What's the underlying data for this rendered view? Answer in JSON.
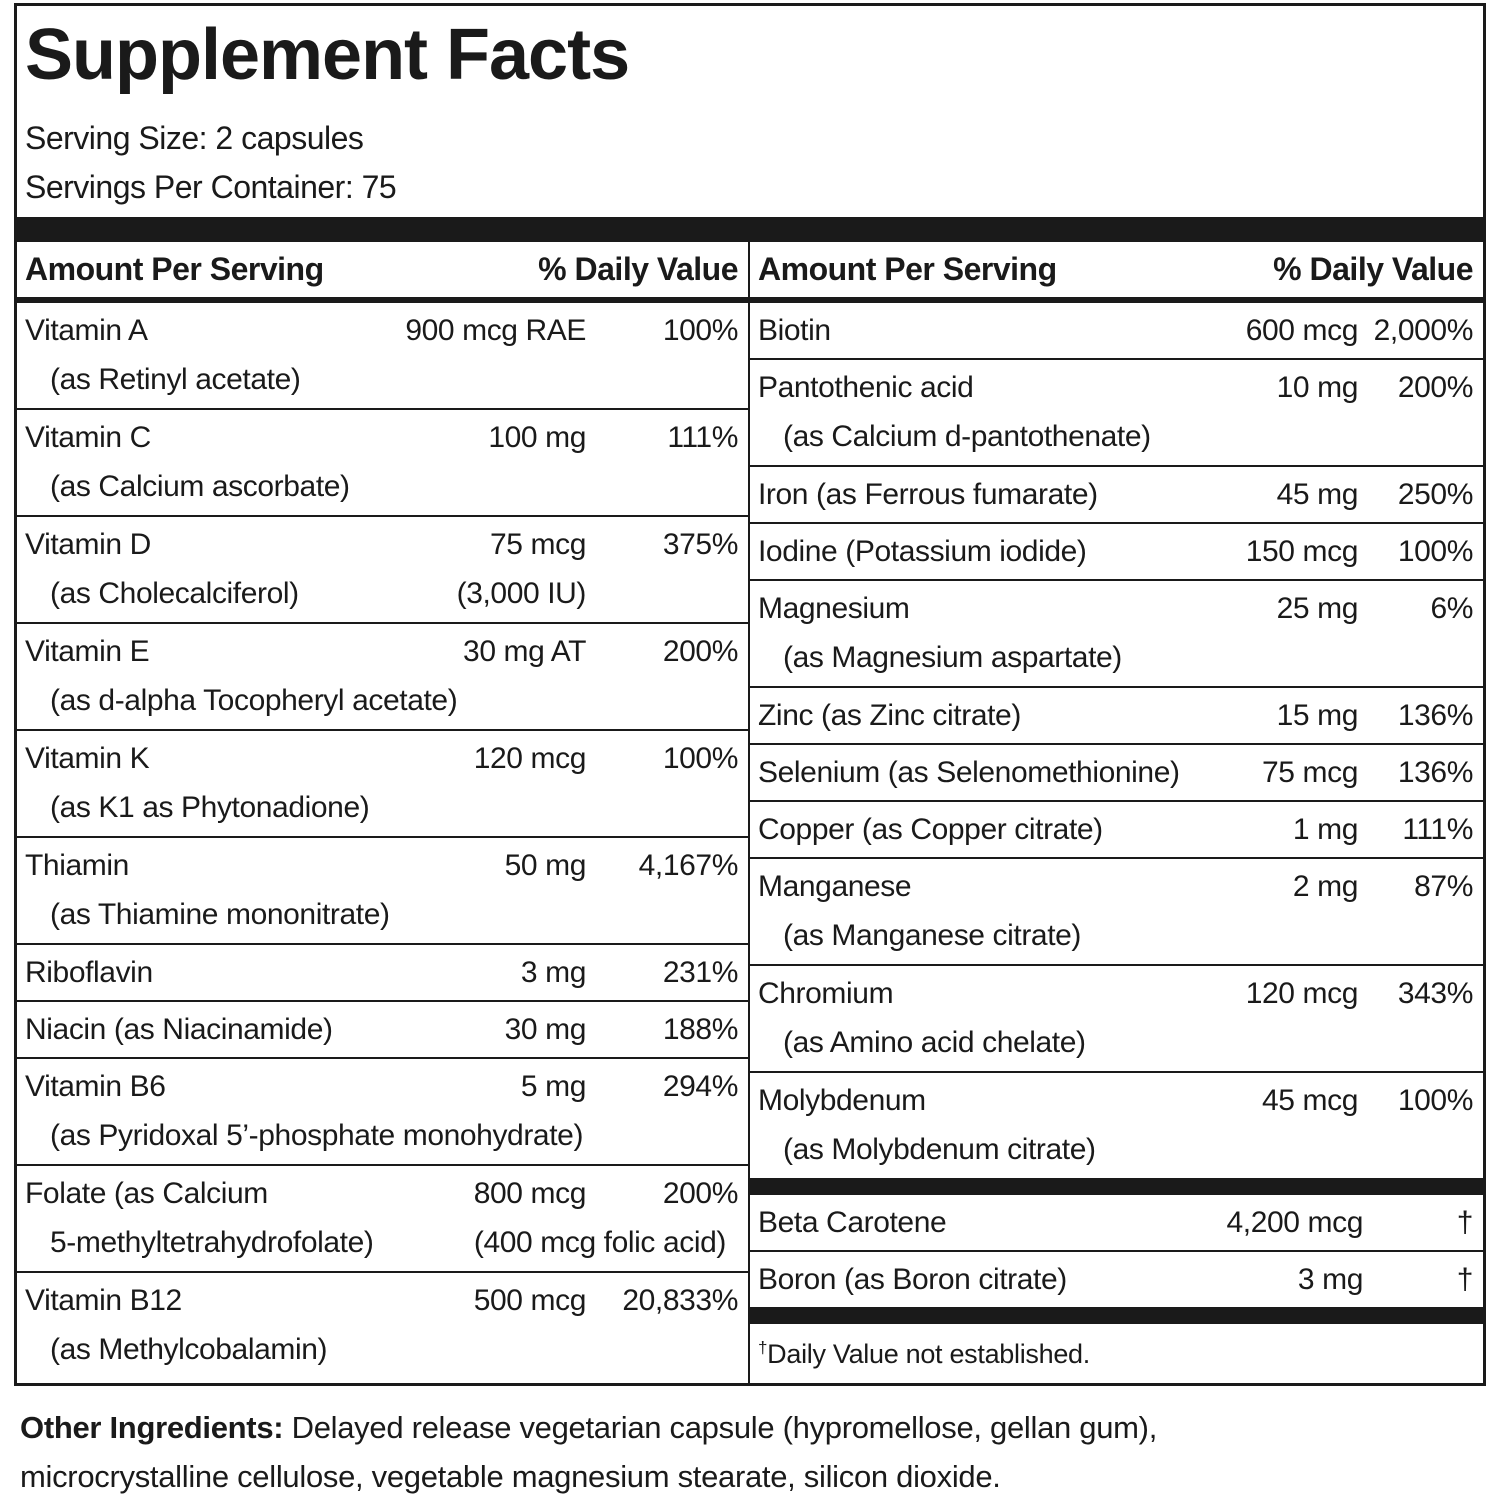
{
  "title": "Supplement Facts",
  "serving_size": "Serving Size: 2 capsules",
  "servings_per_container": "Servings Per Container: 75",
  "left": {
    "header": {
      "amount": "Amount Per Serving",
      "dv": "% Daily Value"
    },
    "rows": [
      {
        "name": "Vitamin A",
        "sub": "(as Retinyl acetate)",
        "amount": "900 mcg RAE",
        "dv": "100%"
      },
      {
        "name": "Vitamin C",
        "sub": "(as Calcium ascorbate)",
        "amount": "100 mg",
        "dv": "111%"
      },
      {
        "name": "Vitamin D",
        "sub": "(as Cholecalciferol)",
        "amount": "75 mcg",
        "amount2": "(3,000 IU)",
        "dv": "375%"
      },
      {
        "name": "Vitamin E",
        "sub": "(as d-alpha Tocopheryl acetate)",
        "amount": "30 mg AT",
        "dv": "200%"
      },
      {
        "name": "Vitamin K",
        "sub": "(as K1 as Phytonadione)",
        "amount": "120 mcg",
        "dv": "100%"
      },
      {
        "name": "Thiamin",
        "sub": "(as Thiamine mononitrate)",
        "amount": "50 mg",
        "dv": "4,167%"
      },
      {
        "name": "Riboflavin",
        "amount": "3 mg",
        "dv": "231%"
      },
      {
        "name": "Niacin (as Niacinamide)",
        "amount": "30 mg",
        "dv": "188%"
      },
      {
        "name": "Vitamin B6",
        "sub": "(as Pyridoxal 5’-phosphate monohydrate)",
        "amount": "5 mg",
        "dv": "294%"
      },
      {
        "name": "Folate (as Calcium",
        "sub": "5-methyltetrahydrofolate)",
        "amount": "800 mcg",
        "amount2": "(400 mcg folic acid)",
        "dv": "200%"
      },
      {
        "name": "Vitamin B12",
        "sub": "(as Methylcobalamin)",
        "amount": "500 mcg",
        "dv": "20,833%"
      }
    ]
  },
  "right": {
    "header": {
      "amount": "Amount Per Serving",
      "dv": "% Daily Value"
    },
    "rows": [
      {
        "name": "Biotin",
        "amount": "600 mcg",
        "dv": "2,000%"
      },
      {
        "name": "Pantothenic acid",
        "sub": "(as Calcium d-pantothenate)",
        "amount": "10 mg",
        "dv": "200%"
      },
      {
        "name": "Iron (as Ferrous fumarate)",
        "amount": "45 mg",
        "dv": "250%"
      },
      {
        "name": "Iodine (Potassium iodide)",
        "amount": "150 mcg",
        "dv": "100%"
      },
      {
        "name": "Magnesium",
        "sub": "(as Magnesium aspartate)",
        "amount": "25 mg",
        "dv": "6%"
      },
      {
        "name": "Zinc (as Zinc citrate)",
        "amount": "15 mg",
        "dv": "136%"
      },
      {
        "name": "Selenium (as Selenomethionine)",
        "amount": "75 mcg",
        "dv": "136%"
      },
      {
        "name": "Copper (as Copper citrate)",
        "amount": "1 mg",
        "dv": "111%"
      },
      {
        "name": "Manganese",
        "sub": "(as Manganese citrate)",
        "amount": "2 mg",
        "dv": "87%"
      },
      {
        "name": "Chromium",
        "sub": "(as Amino acid chelate)",
        "amount": "120 mcg",
        "dv": "343%"
      },
      {
        "name": "Molybdenum",
        "sub": "(as Molybdenum citrate)",
        "amount": "45 mcg",
        "dv": "100%"
      }
    ],
    "other_rows": [
      {
        "name": "Beta Carotene",
        "amount": "4,200 mcg",
        "dv": "†"
      },
      {
        "name": "Boron (as Boron citrate)",
        "amount": "3 mg",
        "dv": "†"
      }
    ],
    "footnote": {
      "mark": "†",
      "text": "Daily Value not established."
    }
  },
  "other_ingredients": {
    "label": "Other Ingredients:",
    "text": "Delayed release vegetarian capsule (hypromellose, gellan gum), microcrystalline cellulose, vegetable magnesium stearate, silicon dioxide."
  }
}
